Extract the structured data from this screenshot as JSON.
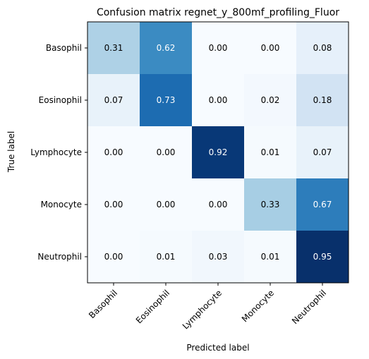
{
  "chart_data": {
    "type": "heatmap",
    "title": "Confusion matrix regnet_y_800mf_profiling_Fluor",
    "xlabel": "Predicted label",
    "ylabel": "True label",
    "x_categories": [
      "Basophil",
      "Eosinophil",
      "Lymphocyte",
      "Monocyte",
      "Neutrophil"
    ],
    "y_categories": [
      "Basophil",
      "Eosinophil",
      "Lymphocyte",
      "Monocyte",
      "Neutrophil"
    ],
    "values": [
      [
        0.31,
        0.62,
        0.0,
        0.0,
        0.08
      ],
      [
        0.07,
        0.73,
        0.0,
        0.02,
        0.18
      ],
      [
        0.0,
        0.0,
        0.92,
        0.01,
        0.07
      ],
      [
        0.0,
        0.0,
        0.0,
        0.33,
        0.67
      ],
      [
        0.0,
        0.01,
        0.03,
        0.01,
        0.95
      ]
    ],
    "value_range": [
      0,
      0.95
    ],
    "colormap": "Blues",
    "grid": false
  }
}
